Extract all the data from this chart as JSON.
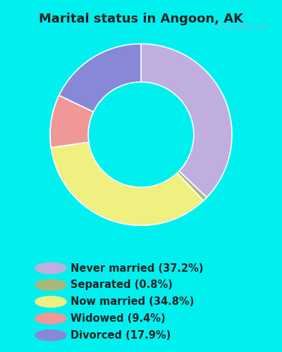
{
  "title": "Marital status in Angoon, AK",
  "title_fontsize": 13,
  "background_cyan": "#00f0f0",
  "background_inner": "#e8f5ee",
  "slices": [
    {
      "label": "Never married (37.2%)",
      "value": 37.2,
      "color": "#c0aee0"
    },
    {
      "label": "Separated (0.8%)",
      "value": 0.8,
      "color": "#a8b87a"
    },
    {
      "label": "Now married (34.8%)",
      "value": 34.8,
      "color": "#f0f080"
    },
    {
      "label": "Widowed (9.4%)",
      "value": 9.4,
      "color": "#f09898"
    },
    {
      "label": "Divorced (17.9%)",
      "value": 17.9,
      "color": "#8888d8"
    }
  ],
  "donut_width": 0.42,
  "legend_fontsize": 10.5,
  "watermark": "City-Data.com",
  "text_color": "#222222"
}
